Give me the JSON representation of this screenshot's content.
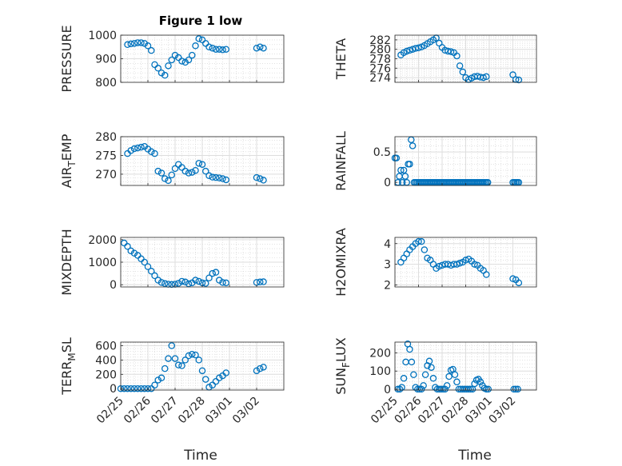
{
  "figure": {
    "title": "Figure 1 low",
    "xlabel": "Time",
    "marker_color": "#0072BD"
  },
  "chart_data": [
    {
      "type": "scatter",
      "title": "Figure 1 low",
      "ylabel": "PRESSURE",
      "xlim": [
        "2024-02-25",
        "2024-03-02"
      ],
      "xticks": [
        "02/25",
        "02/26",
        "02/27",
        "02/28",
        "03/01",
        "03/02"
      ],
      "ylim": [
        800,
        1000
      ],
      "yticks": [
        800,
        900,
        1000
      ],
      "ytick_labels": [
        "800",
        "900",
        "1000"
      ],
      "grid": true,
      "show_xtick_labels": false,
      "x": [
        "2024-02-25T06:00",
        "2024-02-25T09:00",
        "2024-02-25T12:00",
        "2024-02-25T15:00",
        "2024-02-25T18:00",
        "2024-02-25T21:00",
        "2024-02-26T00:00",
        "2024-02-26T03:00",
        "2024-02-26T06:00",
        "2024-02-26T09:00",
        "2024-02-26T12:00",
        "2024-02-26T15:00",
        "2024-02-26T18:00",
        "2024-02-26T21:00",
        "2024-02-27T00:00",
        "2024-02-27T03:00",
        "2024-02-27T06:00",
        "2024-02-27T09:00",
        "2024-02-27T12:00",
        "2024-02-27T15:00",
        "2024-02-27T18:00",
        "2024-02-27T21:00",
        "2024-02-28T00:00",
        "2024-02-28T03:00",
        "2024-02-28T06:00",
        "2024-02-28T09:00",
        "2024-02-28T12:00",
        "2024-02-28T15:00",
        "2024-02-28T18:00",
        "2024-02-28T21:00",
        "2024-03-01T00:00",
        "2024-03-01T03:00",
        "2024-03-01T06:00"
      ],
      "y": [
        960,
        963,
        965,
        968,
        968,
        965,
        955,
        935,
        875,
        860,
        840,
        830,
        870,
        895,
        915,
        905,
        890,
        885,
        895,
        915,
        955,
        985,
        980,
        965,
        950,
        945,
        940,
        940,
        938,
        940,
        945,
        950,
        945
      ]
    },
    {
      "type": "scatter",
      "title": "",
      "ylabel": "THETA",
      "xlim": [
        "2024-02-25",
        "2024-03-02"
      ],
      "xticks": [
        "02/25",
        "02/26",
        "02/27",
        "02/28",
        "03/01",
        "03/02"
      ],
      "ylim": [
        273,
        283
      ],
      "yticks": [
        274,
        276,
        278,
        280,
        282
      ],
      "ytick_labels": [
        "274",
        "276",
        "278",
        "280",
        "282"
      ],
      "grid": true,
      "show_xtick_labels": false,
      "x": [
        "2024-02-25T06:00",
        "2024-02-25T09:00",
        "2024-02-25T12:00",
        "2024-02-25T15:00",
        "2024-02-25T18:00",
        "2024-02-25T21:00",
        "2024-02-26T00:00",
        "2024-02-26T03:00",
        "2024-02-26T06:00",
        "2024-02-26T09:00",
        "2024-02-26T12:00",
        "2024-02-26T15:00",
        "2024-02-26T18:00",
        "2024-02-26T21:00",
        "2024-02-27T00:00",
        "2024-02-27T03:00",
        "2024-02-27T06:00",
        "2024-02-27T09:00",
        "2024-02-27T12:00",
        "2024-02-27T15:00",
        "2024-02-27T18:00",
        "2024-02-27T21:00",
        "2024-02-28T00:00",
        "2024-02-28T03:00",
        "2024-02-28T06:00",
        "2024-02-28T09:00",
        "2024-02-28T12:00",
        "2024-02-28T15:00",
        "2024-02-28T18:00",
        "2024-02-28T21:00",
        "2024-03-01T00:00",
        "2024-03-01T03:00",
        "2024-03-01T06:00"
      ],
      "y": [
        278.8,
        279.3,
        279.6,
        279.8,
        280,
        280.2,
        280.3,
        280.5,
        280.8,
        281.2,
        281.6,
        282,
        282.4,
        281.3,
        280.4,
        279.8,
        279.6,
        279.5,
        279.3,
        278.6,
        276.5,
        275.2,
        274,
        273.6,
        273.9,
        274.2,
        274.3,
        274.1,
        274,
        274.2,
        274.6,
        273.6,
        273.5
      ]
    },
    {
      "type": "scatter",
      "title": "",
      "ylabel": "AIR_TEMP",
      "ylabel_main": "AIR",
      "ylabel_sub": "T",
      "ylabel_rest": "EMP",
      "xlim": [
        "2024-02-25",
        "2024-03-02"
      ],
      "xticks": [
        "02/25",
        "02/26",
        "02/27",
        "02/28",
        "03/01",
        "03/02"
      ],
      "ylim": [
        267,
        280
      ],
      "yticks": [
        270,
        275,
        280
      ],
      "ytick_labels": [
        "270",
        "275",
        "280"
      ],
      "grid": true,
      "show_xtick_labels": false,
      "x": [
        "2024-02-25T06:00",
        "2024-02-25T09:00",
        "2024-02-25T12:00",
        "2024-02-25T15:00",
        "2024-02-25T18:00",
        "2024-02-25T21:00",
        "2024-02-26T00:00",
        "2024-02-26T03:00",
        "2024-02-26T06:00",
        "2024-02-26T09:00",
        "2024-02-26T12:00",
        "2024-02-26T15:00",
        "2024-02-26T18:00",
        "2024-02-26T21:00",
        "2024-02-27T00:00",
        "2024-02-27T03:00",
        "2024-02-27T06:00",
        "2024-02-27T09:00",
        "2024-02-27T12:00",
        "2024-02-27T15:00",
        "2024-02-27T18:00",
        "2024-02-27T21:00",
        "2024-02-28T00:00",
        "2024-02-28T03:00",
        "2024-02-28T06:00",
        "2024-02-28T09:00",
        "2024-02-28T12:00",
        "2024-02-28T15:00",
        "2024-02-28T18:00",
        "2024-02-28T21:00",
        "2024-03-01T00:00",
        "2024-03-01T03:00",
        "2024-03-01T06:00"
      ],
      "y": [
        275.5,
        276.3,
        276.8,
        277,
        277.2,
        277.4,
        276.7,
        276,
        275.5,
        270.8,
        270.3,
        268.8,
        268.3,
        269.8,
        271.5,
        272.6,
        271.8,
        270.8,
        270.3,
        270.5,
        271,
        272.9,
        272.6,
        270.8,
        269.6,
        269.2,
        269.1,
        269,
        268.8,
        268.5,
        269.1,
        268.8,
        268.4
      ]
    },
    {
      "type": "scatter",
      "title": "",
      "ylabel": "RAINFALL",
      "xlim": [
        "2024-02-25",
        "2024-03-02"
      ],
      "xticks": [
        "02/25",
        "02/26",
        "02/27",
        "02/28",
        "03/01",
        "03/02"
      ],
      "ylim": [
        -0.05,
        0.75
      ],
      "yticks": [
        0,
        0.5
      ],
      "ytick_labels": [
        "0",
        "0.5"
      ],
      "grid": true,
      "show_xtick_labels": false,
      "x": [
        "2024-02-25T00:00",
        "2024-02-25T01:30",
        "2024-02-25T03:00",
        "2024-02-25T04:30",
        "2024-02-25T06:00",
        "2024-02-25T07:30",
        "2024-02-25T09:00",
        "2024-02-25T10:30",
        "2024-02-25T12:00",
        "2024-02-25T13:30",
        "2024-02-25T15:00",
        "2024-02-25T16:30",
        "2024-02-25T18:00",
        "2024-02-25T19:30",
        "2024-02-25T21:00",
        "2024-02-25T22:30",
        "2024-02-26T00:00",
        "2024-02-26T01:30",
        "2024-02-26T03:00",
        "2024-02-26T04:30",
        "2024-02-26T06:00",
        "2024-02-26T07:30",
        "2024-02-26T09:00",
        "2024-02-26T10:30",
        "2024-02-26T12:00",
        "2024-02-26T13:30",
        "2024-02-26T15:00",
        "2024-02-26T16:30",
        "2024-02-26T18:00",
        "2024-02-26T19:30",
        "2024-02-26T21:00",
        "2024-02-26T22:30",
        "2024-02-27T00:00",
        "2024-02-27T01:30",
        "2024-02-27T03:00",
        "2024-02-27T04:30",
        "2024-02-27T06:00",
        "2024-02-27T07:30",
        "2024-02-27T09:00",
        "2024-02-27T10:30",
        "2024-02-27T12:00",
        "2024-02-27T13:30",
        "2024-02-27T15:00",
        "2024-02-27T16:30",
        "2024-02-27T18:00",
        "2024-02-27T19:30",
        "2024-02-27T21:00",
        "2024-02-27T22:30",
        "2024-02-28T00:00",
        "2024-02-28T01:30",
        "2024-02-28T03:00",
        "2024-02-28T04:30",
        "2024-02-28T06:00",
        "2024-02-28T07:30",
        "2024-02-28T09:00",
        "2024-02-28T10:30",
        "2024-02-28T12:00",
        "2024-02-28T13:30",
        "2024-02-28T15:00",
        "2024-02-28T16:30",
        "2024-02-28T18:00",
        "2024-02-28T19:30",
        "2024-02-28T21:00",
        "2024-02-28T22:30",
        "2024-03-01T00:00",
        "2024-03-01T01:30",
        "2024-03-01T03:00",
        "2024-03-01T04:30",
        "2024-03-01T06:00"
      ],
      "y": [
        0.4,
        0.4,
        0,
        0.1,
        0.2,
        0,
        0.2,
        0.1,
        0,
        0.3,
        0.3,
        0.7,
        0.6,
        0,
        0,
        0,
        0,
        0,
        0,
        0,
        0,
        0,
        0,
        0,
        0,
        0,
        0,
        0,
        0,
        0,
        0,
        0,
        0,
        0,
        0,
        0,
        0,
        0,
        0,
        0,
        0,
        0,
        0,
        0,
        0,
        0,
        0,
        0,
        0,
        0,
        0,
        0,
        0,
        0,
        0,
        0,
        0,
        0,
        0,
        0,
        0,
        0,
        0,
        0,
        0,
        0,
        0,
        0,
        0
      ]
    },
    {
      "type": "scatter",
      "title": "",
      "ylabel": "MIXDEPTH",
      "xlim": [
        "2024-02-25",
        "2024-03-02"
      ],
      "xticks": [
        "02/25",
        "02/26",
        "02/27",
        "02/28",
        "03/01",
        "03/02"
      ],
      "ylim": [
        -100,
        2100
      ],
      "yticks": [
        0,
        1000,
        2000
      ],
      "ytick_labels": [
        "0",
        "1000",
        "2000"
      ],
      "grid": true,
      "show_xtick_labels": false,
      "x": [
        "2024-02-25T03:00",
        "2024-02-25T06:00",
        "2024-02-25T09:00",
        "2024-02-25T12:00",
        "2024-02-25T15:00",
        "2024-02-25T18:00",
        "2024-02-25T21:00",
        "2024-02-26T00:00",
        "2024-02-26T03:00",
        "2024-02-26T06:00",
        "2024-02-26T09:00",
        "2024-02-26T12:00",
        "2024-02-26T15:00",
        "2024-02-26T18:00",
        "2024-02-26T21:00",
        "2024-02-27T00:00",
        "2024-02-27T03:00",
        "2024-02-27T06:00",
        "2024-02-27T09:00",
        "2024-02-27T12:00",
        "2024-02-27T15:00",
        "2024-02-27T18:00",
        "2024-02-27T21:00",
        "2024-02-28T00:00",
        "2024-02-28T03:00",
        "2024-02-28T06:00",
        "2024-02-28T09:00",
        "2024-02-28T12:00",
        "2024-02-28T15:00",
        "2024-02-28T18:00",
        "2024-02-28T21:00",
        "2024-03-01T00:00",
        "2024-03-01T03:00",
        "2024-03-01T06:00"
      ],
      "y": [
        1850,
        1700,
        1500,
        1400,
        1300,
        1150,
        1000,
        800,
        600,
        400,
        200,
        100,
        50,
        20,
        10,
        20,
        60,
        150,
        120,
        40,
        80,
        200,
        150,
        80,
        60,
        300,
        500,
        550,
        200,
        100,
        80,
        100,
        120,
        130
      ]
    },
    {
      "type": "scatter",
      "title": "",
      "ylabel": "H2OMIXRA",
      "xlim": [
        "2024-02-25",
        "2024-03-02"
      ],
      "xticks": [
        "02/25",
        "02/26",
        "02/27",
        "02/28",
        "03/01",
        "03/02"
      ],
      "ylim": [
        1.9,
        4.3
      ],
      "yticks": [
        2,
        3,
        4
      ],
      "ytick_labels": [
        "2",
        "3",
        "4"
      ],
      "grid": true,
      "show_xtick_labels": false,
      "x": [
        "2024-02-25T06:00",
        "2024-02-25T09:00",
        "2024-02-25T12:00",
        "2024-02-25T15:00",
        "2024-02-25T18:00",
        "2024-02-25T21:00",
        "2024-02-26T00:00",
        "2024-02-26T03:00",
        "2024-02-26T06:00",
        "2024-02-26T09:00",
        "2024-02-26T12:00",
        "2024-02-26T15:00",
        "2024-02-26T18:00",
        "2024-02-26T21:00",
        "2024-02-27T00:00",
        "2024-02-27T03:00",
        "2024-02-27T06:00",
        "2024-02-27T09:00",
        "2024-02-27T12:00",
        "2024-02-27T15:00",
        "2024-02-27T18:00",
        "2024-02-27T21:00",
        "2024-02-28T00:00",
        "2024-02-28T03:00",
        "2024-02-28T06:00",
        "2024-02-28T09:00",
        "2024-02-28T12:00",
        "2024-02-28T15:00",
        "2024-02-28T18:00",
        "2024-02-28T21:00",
        "2024-03-01T00:00",
        "2024-03-01T03:00",
        "2024-03-01T06:00"
      ],
      "y": [
        3.1,
        3.3,
        3.5,
        3.7,
        3.85,
        4.0,
        4.1,
        4.1,
        3.7,
        3.3,
        3.2,
        3.0,
        2.8,
        2.9,
        2.95,
        3.0,
        3.0,
        2.95,
        3.0,
        3.0,
        3.05,
        3.1,
        3.2,
        3.25,
        3.15,
        3.0,
        2.95,
        2.8,
        2.7,
        2.5,
        2.3,
        2.25,
        2.1
      ]
    },
    {
      "type": "scatter",
      "title": "",
      "ylabel": "TERR_MSL",
      "ylabel_main": "TERR",
      "ylabel_sub": "M",
      "ylabel_rest": "SL",
      "xlim": [
        "2024-02-25",
        "2024-03-02"
      ],
      "xticks": [
        "02/25",
        "02/26",
        "02/27",
        "02/28",
        "03/01",
        "03/02"
      ],
      "ylim": [
        -20,
        650
      ],
      "yticks": [
        0,
        200,
        400,
        600
      ],
      "ytick_labels": [
        "0",
        "200",
        "400",
        "600"
      ],
      "grid": true,
      "show_xtick_labels": true,
      "x": [
        "2024-02-25T00:00",
        "2024-02-25T03:00",
        "2024-02-25T06:00",
        "2024-02-25T09:00",
        "2024-02-25T12:00",
        "2024-02-25T15:00",
        "2024-02-25T18:00",
        "2024-02-25T21:00",
        "2024-02-26T00:00",
        "2024-02-26T03:00",
        "2024-02-26T06:00",
        "2024-02-26T09:00",
        "2024-02-26T12:00",
        "2024-02-26T15:00",
        "2024-02-26T18:00",
        "2024-02-26T21:00",
        "2024-02-27T00:00",
        "2024-02-27T03:00",
        "2024-02-27T06:00",
        "2024-02-27T09:00",
        "2024-02-27T12:00",
        "2024-02-27T15:00",
        "2024-02-27T18:00",
        "2024-02-27T21:00",
        "2024-02-28T00:00",
        "2024-02-28T03:00",
        "2024-02-28T06:00",
        "2024-02-28T09:00",
        "2024-02-28T12:00",
        "2024-02-28T15:00",
        "2024-02-28T18:00",
        "2024-02-28T21:00",
        "2024-03-01T00:00",
        "2024-03-01T03:00",
        "2024-03-01T06:00"
      ],
      "y": [
        0,
        0,
        0,
        0,
        0,
        0,
        0,
        0,
        0,
        0,
        50,
        120,
        150,
        280,
        420,
        600,
        420,
        330,
        320,
        400,
        460,
        480,
        470,
        400,
        250,
        130,
        20,
        50,
        100,
        150,
        180,
        220,
        250,
        280,
        300
      ]
    },
    {
      "type": "scatter",
      "title": "",
      "ylabel": "SUN_FLUX",
      "ylabel_main": "SUN",
      "ylabel_sub": "F",
      "ylabel_rest": "LUX",
      "xlim": [
        "2024-02-25",
        "2024-03-02"
      ],
      "xticks": [
        "02/25",
        "02/26",
        "02/27",
        "02/28",
        "03/01",
        "03/02"
      ],
      "ylim": [
        -5,
        260
      ],
      "yticks": [
        0,
        100,
        200
      ],
      "ytick_labels": [
        "0",
        "100",
        "200"
      ],
      "grid": true,
      "show_xtick_labels": true,
      "x": [
        "2024-02-25T03:00",
        "2024-02-25T05:00",
        "2024-02-25T07:00",
        "2024-02-25T09:00",
        "2024-02-25T11:00",
        "2024-02-25T13:00",
        "2024-02-25T15:00",
        "2024-02-25T17:00",
        "2024-02-25T19:00",
        "2024-02-25T21:00",
        "2024-02-25T23:00",
        "2024-02-26T01:00",
        "2024-02-26T03:00",
        "2024-02-26T05:00",
        "2024-02-26T07:00",
        "2024-02-26T09:00",
        "2024-02-26T11:00",
        "2024-02-26T13:00",
        "2024-02-26T15:00",
        "2024-02-26T17:00",
        "2024-02-26T19:00",
        "2024-02-26T21:00",
        "2024-02-26T23:00",
        "2024-02-27T01:00",
        "2024-02-27T03:00",
        "2024-02-27T05:00",
        "2024-02-27T07:00",
        "2024-02-27T09:00",
        "2024-02-27T11:00",
        "2024-02-27T13:00",
        "2024-02-27T15:00",
        "2024-02-27T17:00",
        "2024-02-27T19:00",
        "2024-02-27T21:00",
        "2024-02-27T23:00",
        "2024-02-28T01:00",
        "2024-02-28T03:00",
        "2024-02-28T05:00",
        "2024-02-28T07:00",
        "2024-02-28T09:00",
        "2024-02-28T11:00",
        "2024-02-28T13:00",
        "2024-02-28T15:00",
        "2024-02-28T17:00",
        "2024-02-28T19:00",
        "2024-02-28T21:00",
        "2024-02-28T23:00",
        "2024-03-01T01:00",
        "2024-03-01T03:00",
        "2024-03-01T05:00"
      ],
      "y": [
        0,
        0,
        10,
        60,
        150,
        250,
        220,
        150,
        80,
        10,
        0,
        0,
        0,
        20,
        80,
        130,
        155,
        120,
        60,
        10,
        0,
        0,
        0,
        0,
        0,
        20,
        70,
        105,
        110,
        80,
        40,
        0,
        0,
        0,
        0,
        0,
        0,
        0,
        0,
        30,
        50,
        55,
        40,
        20,
        5,
        0,
        0,
        0,
        0,
        0
      ]
    }
  ]
}
